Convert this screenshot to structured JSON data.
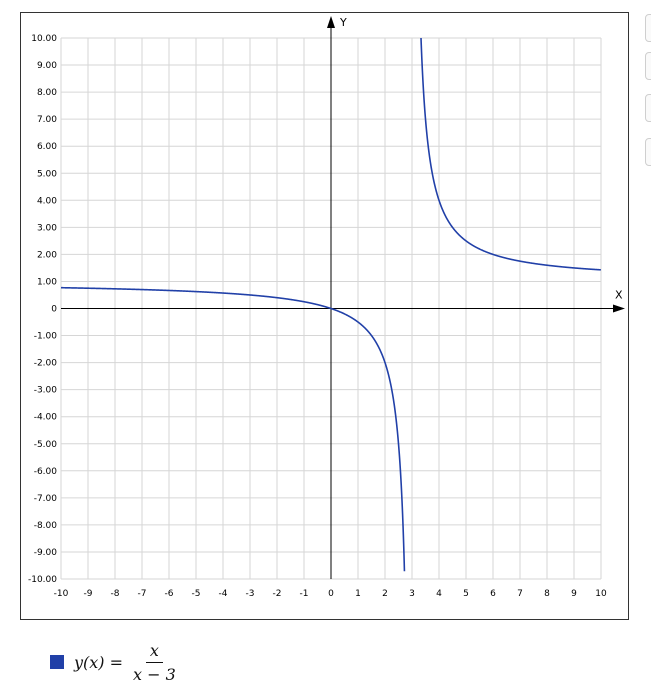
{
  "chart_data": {
    "type": "line",
    "function": "x/(x-3)",
    "xlabel": "X",
    "ylabel": "Y",
    "xlim": [
      -10,
      10
    ],
    "ylim": [
      -10,
      10
    ],
    "grid": true,
    "x_ticks": [
      "-10",
      "-9",
      "-8",
      "-7",
      "-6",
      "-5",
      "-4",
      "-3",
      "-2",
      "-1",
      "0",
      "1",
      "2",
      "3",
      "4",
      "5",
      "6",
      "7",
      "8",
      "9",
      "10"
    ],
    "y_ticks": [
      "10.00",
      "9.00",
      "8.00",
      "7.00",
      "6.00",
      "5.00",
      "4.00",
      "3.00",
      "2.00",
      "1.00",
      "0",
      "-1.00",
      "-2.00",
      "-3.00",
      "-4.00",
      "-5.00",
      "-6.00",
      "-7.00",
      "-8.00",
      "-9.00",
      "-10.00"
    ],
    "series": [
      {
        "name": "y(x) = x/(x − 3)",
        "color": "#2140a8",
        "x": [
          -10,
          -8,
          -6,
          -4,
          -2,
          0,
          1,
          2,
          2.5,
          2.7,
          3.3,
          3.5,
          4,
          5,
          6,
          8,
          10
        ],
        "y": [
          0.769,
          0.727,
          0.667,
          0.571,
          0.4,
          0,
          -0.5,
          -2,
          -5,
          -9,
          11,
          7,
          4,
          2.5,
          2,
          1.6,
          1.429
        ]
      }
    ],
    "legend_position": "bottom-left"
  },
  "legend": {
    "lhs": "y(x) =",
    "numerator": "x",
    "denominator": "x − 3",
    "swatch_color": "#2140a8"
  }
}
